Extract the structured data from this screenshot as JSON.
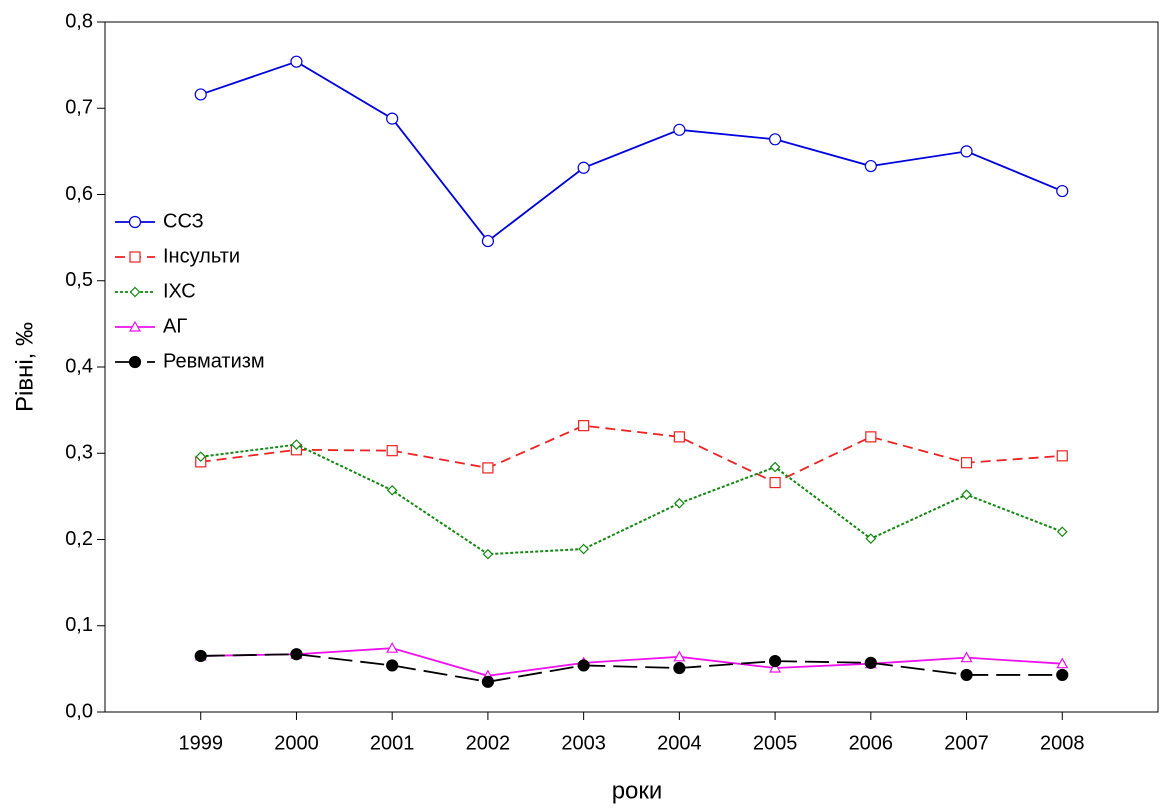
{
  "chart_data": {
    "type": "line",
    "x_label": "роки",
    "y_label": "Рівні, ‰",
    "x": [
      1999,
      2000,
      2001,
      2002,
      2003,
      2004,
      2005,
      2006,
      2007,
      2008
    ],
    "xlim": [
      1998,
      2009
    ],
    "xticks": [
      1999,
      2000,
      2001,
      2002,
      2003,
      2004,
      2005,
      2006,
      2007,
      2008
    ],
    "ylim": [
      0,
      0.8
    ],
    "yticks": [
      {
        "value": 0,
        "label": "0,0"
      },
      {
        "value": 0.1,
        "label": "0,1"
      },
      {
        "value": 0.2,
        "label": "0,2"
      },
      {
        "value": 0.3,
        "label": "0,3"
      },
      {
        "value": 0.4,
        "label": "0,4"
      },
      {
        "value": 0.5,
        "label": "0,5"
      },
      {
        "value": 0.6,
        "label": "0,6"
      },
      {
        "value": 0.7,
        "label": "0,7"
      },
      {
        "value": 0.8,
        "label": "0,8"
      }
    ],
    "legend": "left",
    "series": [
      {
        "name": "ССЗ",
        "color": "#0000dd",
        "marker": "circle",
        "dash": "solid",
        "values": [
          0.716,
          0.754,
          0.688,
          0.546,
          0.631,
          0.675,
          0.664,
          0.633,
          0.65,
          0.604
        ]
      },
      {
        "name": "Інсульти",
        "color": "#ee2222",
        "marker": "square",
        "dash": "dashed",
        "values": [
          0.29,
          0.304,
          0.303,
          0.283,
          0.332,
          0.319,
          0.266,
          0.319,
          0.289,
          0.297
        ]
      },
      {
        "name": "ІХС",
        "color": "#118811",
        "marker": "diamond",
        "dash": "dotted",
        "values": [
          0.296,
          0.31,
          0.257,
          0.183,
          0.189,
          0.242,
          0.284,
          0.201,
          0.252,
          0.209
        ]
      },
      {
        "name": "АГ",
        "color": "#ee11ee",
        "marker": "triangle",
        "dash": "solid",
        "values": [
          0.065,
          0.067,
          0.074,
          0.042,
          0.057,
          0.064,
          0.051,
          0.056,
          0.063,
          0.056
        ]
      },
      {
        "name": "Ревматизм",
        "color": "#000000",
        "marker": "filled-circle",
        "dash": "longdash",
        "values": [
          0.065,
          0.067,
          0.054,
          0.035,
          0.054,
          0.051,
          0.059,
          0.057,
          0.043,
          0.043
        ]
      }
    ]
  }
}
